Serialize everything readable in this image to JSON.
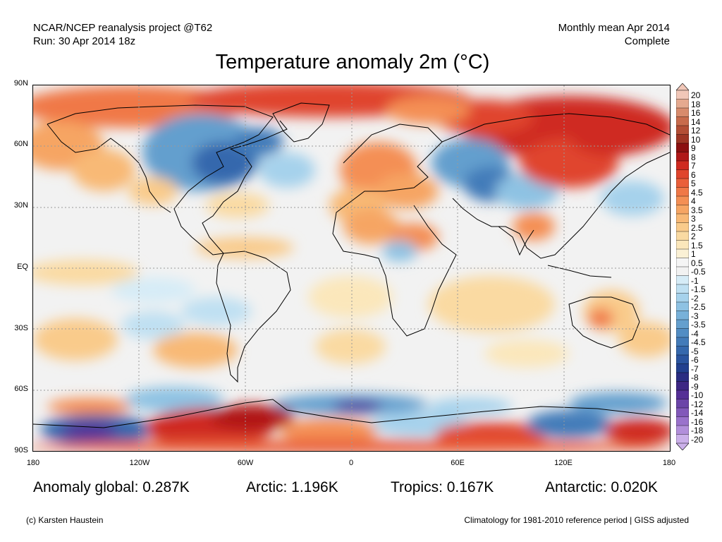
{
  "header": {
    "left_line1": "NCAR/NCEP reanalysis project @T62",
    "left_line2": "Run: 30 Apr 2014 18z",
    "right_line1": "Monthly mean Apr 2014",
    "right_line2": "Complete"
  },
  "title": "Temperature anomaly 2m (°C)",
  "axes": {
    "lat_labels": [
      "90N",
      "60N",
      "30N",
      "EQ",
      "30S",
      "60S",
      "90S"
    ],
    "lon_labels": [
      "180",
      "120W",
      "60W",
      "0",
      "60E",
      "120E",
      "180"
    ]
  },
  "stats": {
    "global": "Anomaly global: 0.287K",
    "arctic": "Arctic: 1.196K",
    "tropics": "Tropics: 0.167K",
    "antarctic": "Antarctic: 0.020K"
  },
  "footer": {
    "credit": "(c) Karsten Haustein",
    "note": "Climatology for 1981-2010 reference period | GISS adjusted"
  },
  "colorbar": {
    "labels": [
      "20",
      "18",
      "16",
      "14",
      "12",
      "10",
      "9",
      "8",
      "7",
      "6",
      "5",
      "4.5",
      "4",
      "3.5",
      "3",
      "2.5",
      "2",
      "1.5",
      "1",
      "0.5",
      "-0.5",
      "-1",
      "-1.5",
      "-2",
      "-2.5",
      "-3",
      "-3.5",
      "-4",
      "-4.5",
      "-5",
      "-6",
      "-7",
      "-8",
      "-9",
      "-10",
      "-12",
      "-14",
      "-16",
      "-18",
      "-20"
    ],
    "colors": [
      "#f1c7b8",
      "#e5a98f",
      "#d88b6c",
      "#c86b4c",
      "#b34e35",
      "#9e3524",
      "#8c1010",
      "#b01818",
      "#cf2a20",
      "#e0452d",
      "#ea5f3a",
      "#f07847",
      "#f48f54",
      "#f6a563",
      "#f8b976",
      "#f9cb8b",
      "#fadaa2",
      "#fbe7bb",
      "#fbf1d5",
      "#f5f5f5",
      "#f2f2f2",
      "#d6ecf7",
      "#bfe0f2",
      "#a6d2ec",
      "#8ec2e3",
      "#78b1d9",
      "#649fce",
      "#528dc4",
      "#437bb9",
      "#3568ad",
      "#2a549f",
      "#22408f",
      "#2a2d82",
      "#3d2784",
      "#552f96",
      "#6b44a8",
      "#8259ba",
      "#9a72cc",
      "#b28fdb",
      "#cbb0ea"
    ]
  },
  "colors": {
    "ocean_neutral": "#f2f2f2",
    "land_outline": "#000000",
    "warm_strong": "#c8261c",
    "cold_strong": "#2f5fa8"
  }
}
